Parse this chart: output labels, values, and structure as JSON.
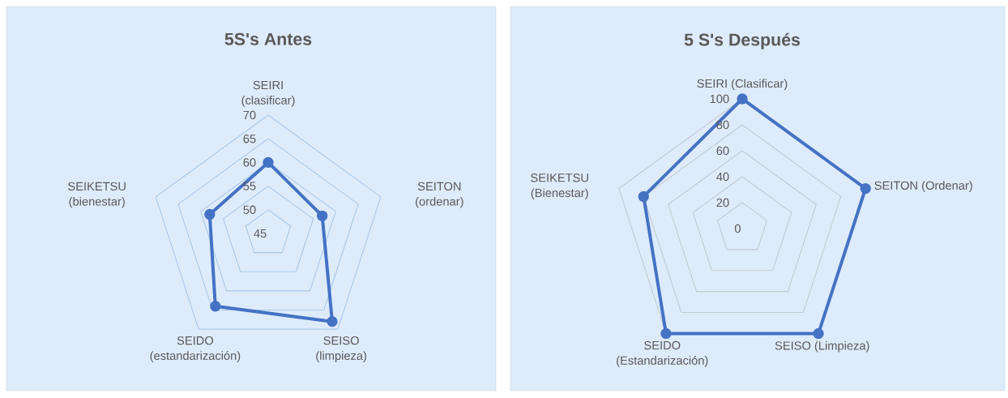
{
  "chart_data": [
    {
      "type": "radar",
      "title": "5S's Antes",
      "categories": [
        "SEIRI (clasificar)",
        "SEITON (ordenar)",
        "SEISO (limpieza)",
        "SEIDO (estandarización)",
        "SEIKETSU (bienestar)"
      ],
      "series": [
        {
          "color": "#4472c4",
          "values": [
            60,
            57,
            68,
            64,
            58
          ]
        }
      ],
      "ylim": [
        45,
        70
      ],
      "yticks": [
        45,
        50,
        55,
        60,
        65,
        70
      ],
      "grid": true,
      "marker": "circle",
      "line_style": "solid"
    },
    {
      "type": "radar",
      "title": "5 S's Después",
      "categories": [
        "SEIRI (Clasificar)",
        "SEITON (Ordenar)",
        "SEISO (Limpieza)",
        "SEIDO (Estandarización)",
        "SEIKETSU (Bienestar)"
      ],
      "series": [
        {
          "color": "#4472c4",
          "values": [
            100,
            100,
            100,
            100,
            80
          ]
        }
      ],
      "ylim": [
        0,
        100
      ],
      "yticks": [
        0,
        20,
        40,
        60,
        80,
        100
      ],
      "grid": true,
      "marker": "circle",
      "line_style": "solid"
    }
  ]
}
